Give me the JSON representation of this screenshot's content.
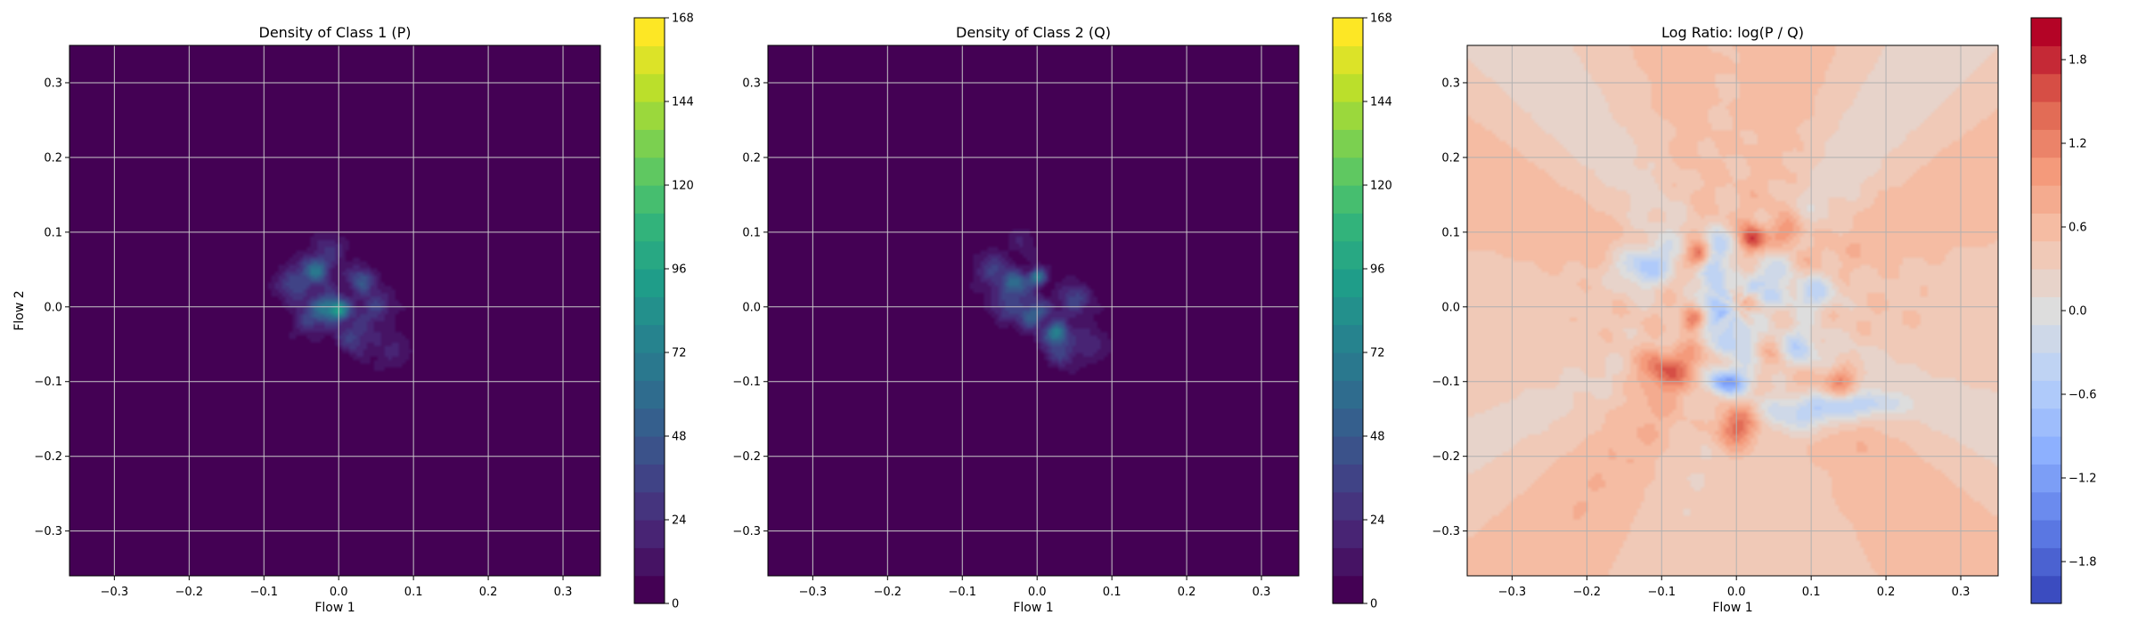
{
  "chart_data": [
    {
      "type": "heatmap",
      "subtype": "filled-contour",
      "title": "Density of Class 1 (P)",
      "xlabel": "Flow 1",
      "ylabel": "Flow 2",
      "xlim": [
        -0.36,
        0.35
      ],
      "ylim": [
        -0.36,
        0.35
      ],
      "xticks": [
        -0.3,
        -0.2,
        -0.1,
        0.0,
        0.1,
        0.2,
        0.3
      ],
      "yticks": [
        -0.3,
        -0.2,
        -0.1,
        0.0,
        0.1,
        0.2,
        0.3
      ],
      "xtick_labels": [
        "−0.3",
        "−0.2",
        "−0.1",
        "0.0",
        "0.1",
        "0.2",
        "0.3"
      ],
      "ytick_labels": [
        "−0.3",
        "−0.2",
        "−0.1",
        "0.0",
        "0.1",
        "0.2",
        "0.3"
      ],
      "grid": true,
      "colormap": "viridis",
      "colorbar": {
        "min": 0,
        "max": 168,
        "levels": 21,
        "ticks": [
          0,
          24,
          48,
          72,
          96,
          120,
          144,
          168
        ],
        "tick_labels": [
          "0",
          "24",
          "48",
          "72",
          "96",
          "120",
          "144",
          "168"
        ]
      },
      "blobs": [
        {
          "x": -0.01,
          "y": 0.02,
          "sx": 0.065,
          "sy": 0.05,
          "rho": -0.45,
          "amp": 10
        },
        {
          "x": -0.03,
          "y": 0.05,
          "sx": 0.012,
          "sy": 0.012,
          "rho": 0,
          "amp": 55
        },
        {
          "x": 0.0,
          "y": -0.005,
          "sx": 0.01,
          "sy": 0.01,
          "rho": 0,
          "amp": 75
        },
        {
          "x": -0.02,
          "y": 0.0,
          "sx": 0.012,
          "sy": 0.012,
          "rho": 0,
          "amp": 50
        },
        {
          "x": 0.03,
          "y": 0.035,
          "sx": 0.012,
          "sy": 0.012,
          "rho": 0,
          "amp": 40
        },
        {
          "x": -0.06,
          "y": 0.03,
          "sx": 0.015,
          "sy": 0.015,
          "rho": 0,
          "amp": 32
        },
        {
          "x": 0.02,
          "y": -0.04,
          "sx": 0.015,
          "sy": 0.015,
          "rho": 0,
          "amp": 30
        },
        {
          "x": 0.05,
          "y": 0.0,
          "sx": 0.014,
          "sy": 0.014,
          "rho": 0,
          "amp": 28
        },
        {
          "x": -0.04,
          "y": -0.02,
          "sx": 0.015,
          "sy": 0.015,
          "rho": 0,
          "amp": 26
        },
        {
          "x": -0.01,
          "y": 0.08,
          "sx": 0.015,
          "sy": 0.015,
          "rho": 0,
          "amp": 18
        },
        {
          "x": 0.07,
          "y": -0.06,
          "sx": 0.02,
          "sy": 0.02,
          "rho": 0,
          "amp": 15
        }
      ]
    },
    {
      "type": "heatmap",
      "subtype": "filled-contour",
      "title": "Density of Class 2 (Q)",
      "xlabel": "Flow 1",
      "ylabel": "",
      "xlim": [
        -0.36,
        0.35
      ],
      "ylim": [
        -0.36,
        0.35
      ],
      "xticks": [
        -0.3,
        -0.2,
        -0.1,
        0.0,
        0.1,
        0.2,
        0.3
      ],
      "yticks": [
        -0.3,
        -0.2,
        -0.1,
        0.0,
        0.1,
        0.2,
        0.3
      ],
      "xtick_labels": [
        "−0.3",
        "−0.2",
        "−0.1",
        "0.0",
        "0.1",
        "0.2",
        "0.3"
      ],
      "ytick_labels": [
        "−0.3",
        "−0.2",
        "−0.1",
        "0.0",
        "0.1",
        "0.2",
        "0.3"
      ],
      "grid": true,
      "colormap": "viridis",
      "colorbar": {
        "min": 0,
        "max": 168,
        "levels": 21,
        "ticks": [
          0,
          24,
          48,
          72,
          96,
          120,
          144,
          168
        ],
        "tick_labels": [
          "0",
          "24",
          "48",
          "72",
          "96",
          "120",
          "144",
          "168"
        ]
      },
      "blobs": [
        {
          "x": 0.0,
          "y": 0.0,
          "sx": 0.065,
          "sy": 0.05,
          "rho": -0.55,
          "amp": 10
        },
        {
          "x": -0.03,
          "y": 0.03,
          "sx": 0.012,
          "sy": 0.012,
          "rho": 0,
          "amp": 50
        },
        {
          "x": 0.0,
          "y": 0.04,
          "sx": 0.008,
          "sy": 0.008,
          "rho": 0,
          "amp": 70
        },
        {
          "x": 0.025,
          "y": -0.035,
          "sx": 0.01,
          "sy": 0.01,
          "rho": 0,
          "amp": 65
        },
        {
          "x": -0.005,
          "y": -0.01,
          "sx": 0.012,
          "sy": 0.012,
          "rho": 0,
          "amp": 48
        },
        {
          "x": 0.05,
          "y": 0.01,
          "sx": 0.014,
          "sy": 0.014,
          "rho": 0,
          "amp": 32
        },
        {
          "x": -0.06,
          "y": 0.05,
          "sx": 0.015,
          "sy": 0.015,
          "rho": 0,
          "amp": 28
        },
        {
          "x": 0.03,
          "y": -0.06,
          "sx": 0.015,
          "sy": 0.015,
          "rho": 0,
          "amp": 26
        },
        {
          "x": -0.04,
          "y": 0.0,
          "sx": 0.015,
          "sy": 0.015,
          "rho": 0,
          "amp": 24
        },
        {
          "x": 0.07,
          "y": -0.05,
          "sx": 0.02,
          "sy": 0.02,
          "rho": 0,
          "amp": 14
        },
        {
          "x": -0.02,
          "y": 0.09,
          "sx": 0.015,
          "sy": 0.015,
          "rho": 0,
          "amp": 14
        }
      ]
    },
    {
      "type": "heatmap",
      "subtype": "filled-contour",
      "title": "Log Ratio: log(P / Q)",
      "xlabel": "Flow 1",
      "ylabel": "",
      "xlim": [
        -0.36,
        0.35
      ],
      "ylim": [
        -0.36,
        0.35
      ],
      "xticks": [
        -0.3,
        -0.2,
        -0.1,
        0.0,
        0.1,
        0.2,
        0.3
      ],
      "yticks": [
        -0.3,
        -0.2,
        -0.1,
        0.0,
        0.1,
        0.2,
        0.3
      ],
      "xtick_labels": [
        "−0.3",
        "−0.2",
        "−0.1",
        "0.0",
        "0.1",
        "0.2",
        "0.3"
      ],
      "ytick_labels": [
        "−0.3",
        "−0.2",
        "−0.1",
        "0.0",
        "0.1",
        "0.2",
        "0.3"
      ],
      "grid": true,
      "colormap": "coolwarm",
      "colorbar": {
        "min": -2.1,
        "max": 2.1,
        "levels": 21,
        "ticks": [
          -1.8,
          -1.2,
          -0.6,
          0.0,
          0.6,
          1.2,
          1.8
        ],
        "tick_labels": [
          "−1.8",
          "−1.2",
          "−0.6",
          "0.0",
          "0.6",
          "1.2",
          "1.8"
        ]
      },
      "background_value": 0.45,
      "blobs": [
        {
          "x": -0.12,
          "y": 0.055,
          "sx": 0.03,
          "sy": 0.02,
          "rho": 0,
          "amp": -1.2
        },
        {
          "x": -0.03,
          "y": 0.02,
          "sx": 0.015,
          "sy": 0.04,
          "rho": 0,
          "amp": -1.0
        },
        {
          "x": 0.0,
          "y": -0.04,
          "sx": 0.02,
          "sy": 0.02,
          "rho": 0,
          "amp": -0.9
        },
        {
          "x": -0.01,
          "y": -0.1,
          "sx": 0.02,
          "sy": 0.012,
          "rho": 0,
          "amp": -1.5
        },
        {
          "x": 0.1,
          "y": -0.14,
          "sx": 0.04,
          "sy": 0.018,
          "rho": 0,
          "amp": -1.0
        },
        {
          "x": 0.17,
          "y": -0.13,
          "sx": 0.04,
          "sy": 0.012,
          "rho": 0,
          "amp": -0.7
        },
        {
          "x": 0.04,
          "y": 0.03,
          "sx": 0.02,
          "sy": 0.02,
          "rho": 0,
          "amp": -0.8
        },
        {
          "x": 0.1,
          "y": 0.02,
          "sx": 0.025,
          "sy": 0.02,
          "rho": 0,
          "amp": -0.8
        },
        {
          "x": 0.08,
          "y": -0.06,
          "sx": 0.02,
          "sy": 0.02,
          "rho": 0,
          "amp": -0.7
        },
        {
          "x": -0.02,
          "y": 0.08,
          "sx": 0.015,
          "sy": 0.015,
          "rho": 0,
          "amp": -0.9
        },
        {
          "x": -0.05,
          "y": 0.07,
          "sx": 0.012,
          "sy": 0.012,
          "rho": 0,
          "amp": 1.6
        },
        {
          "x": 0.02,
          "y": 0.09,
          "sx": 0.012,
          "sy": 0.012,
          "rho": 0,
          "amp": 1.3
        },
        {
          "x": -0.1,
          "y": -0.08,
          "sx": 0.025,
          "sy": 0.02,
          "rho": 0,
          "amp": 1.0
        },
        {
          "x": 0.0,
          "y": -0.16,
          "sx": 0.02,
          "sy": 0.02,
          "rho": 0,
          "amp": 1.0
        },
        {
          "x": 0.07,
          "y": 0.1,
          "sx": 0.015,
          "sy": 0.015,
          "rho": 0,
          "amp": 0.9
        },
        {
          "x": -0.06,
          "y": -0.02,
          "sx": 0.012,
          "sy": 0.012,
          "rho": 0,
          "amp": 0.9
        },
        {
          "x": 0.14,
          "y": -0.1,
          "sx": 0.015,
          "sy": 0.015,
          "rho": 0,
          "amp": 0.8
        }
      ]
    }
  ]
}
